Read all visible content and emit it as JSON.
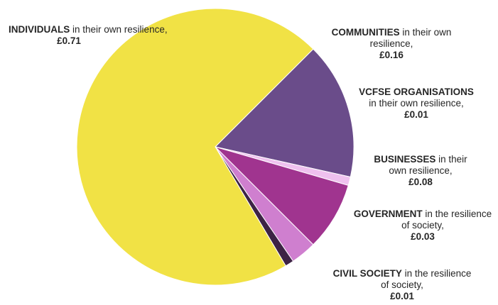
{
  "chart_data": {
    "type": "pie",
    "title": "",
    "slices": [
      {
        "category": "INDIVIDUALS",
        "rest": " in their own resilience,",
        "value_label": "£0.71",
        "value": 0.71,
        "color": "#f1e245"
      },
      {
        "category": "COMMUNITIES",
        "rest": " in their own resilience,",
        "value_label": "£0.16",
        "value": 0.16,
        "color": "#6a4c8a"
      },
      {
        "category": "VCFSE ORGANISATIONS",
        "rest": " in their own resilience,",
        "value_label": "£0.01",
        "value": 0.01,
        "color": "#efc1ef"
      },
      {
        "category": "BUSINESSES",
        "rest": " in their own resilience,",
        "value_label": "£0.08",
        "value": 0.08,
        "color": "#a0348f"
      },
      {
        "category": "GOVERNMENT",
        "rest": " in the resilience of society,",
        "value_label": "£0.03",
        "value": 0.03,
        "color": "#cf7fcf"
      },
      {
        "category": "CIVIL SOCIETY",
        "rest": " in the resilience of society,",
        "value_label": "£0.01",
        "value": 0.01,
        "color": "#3d2345"
      }
    ]
  }
}
